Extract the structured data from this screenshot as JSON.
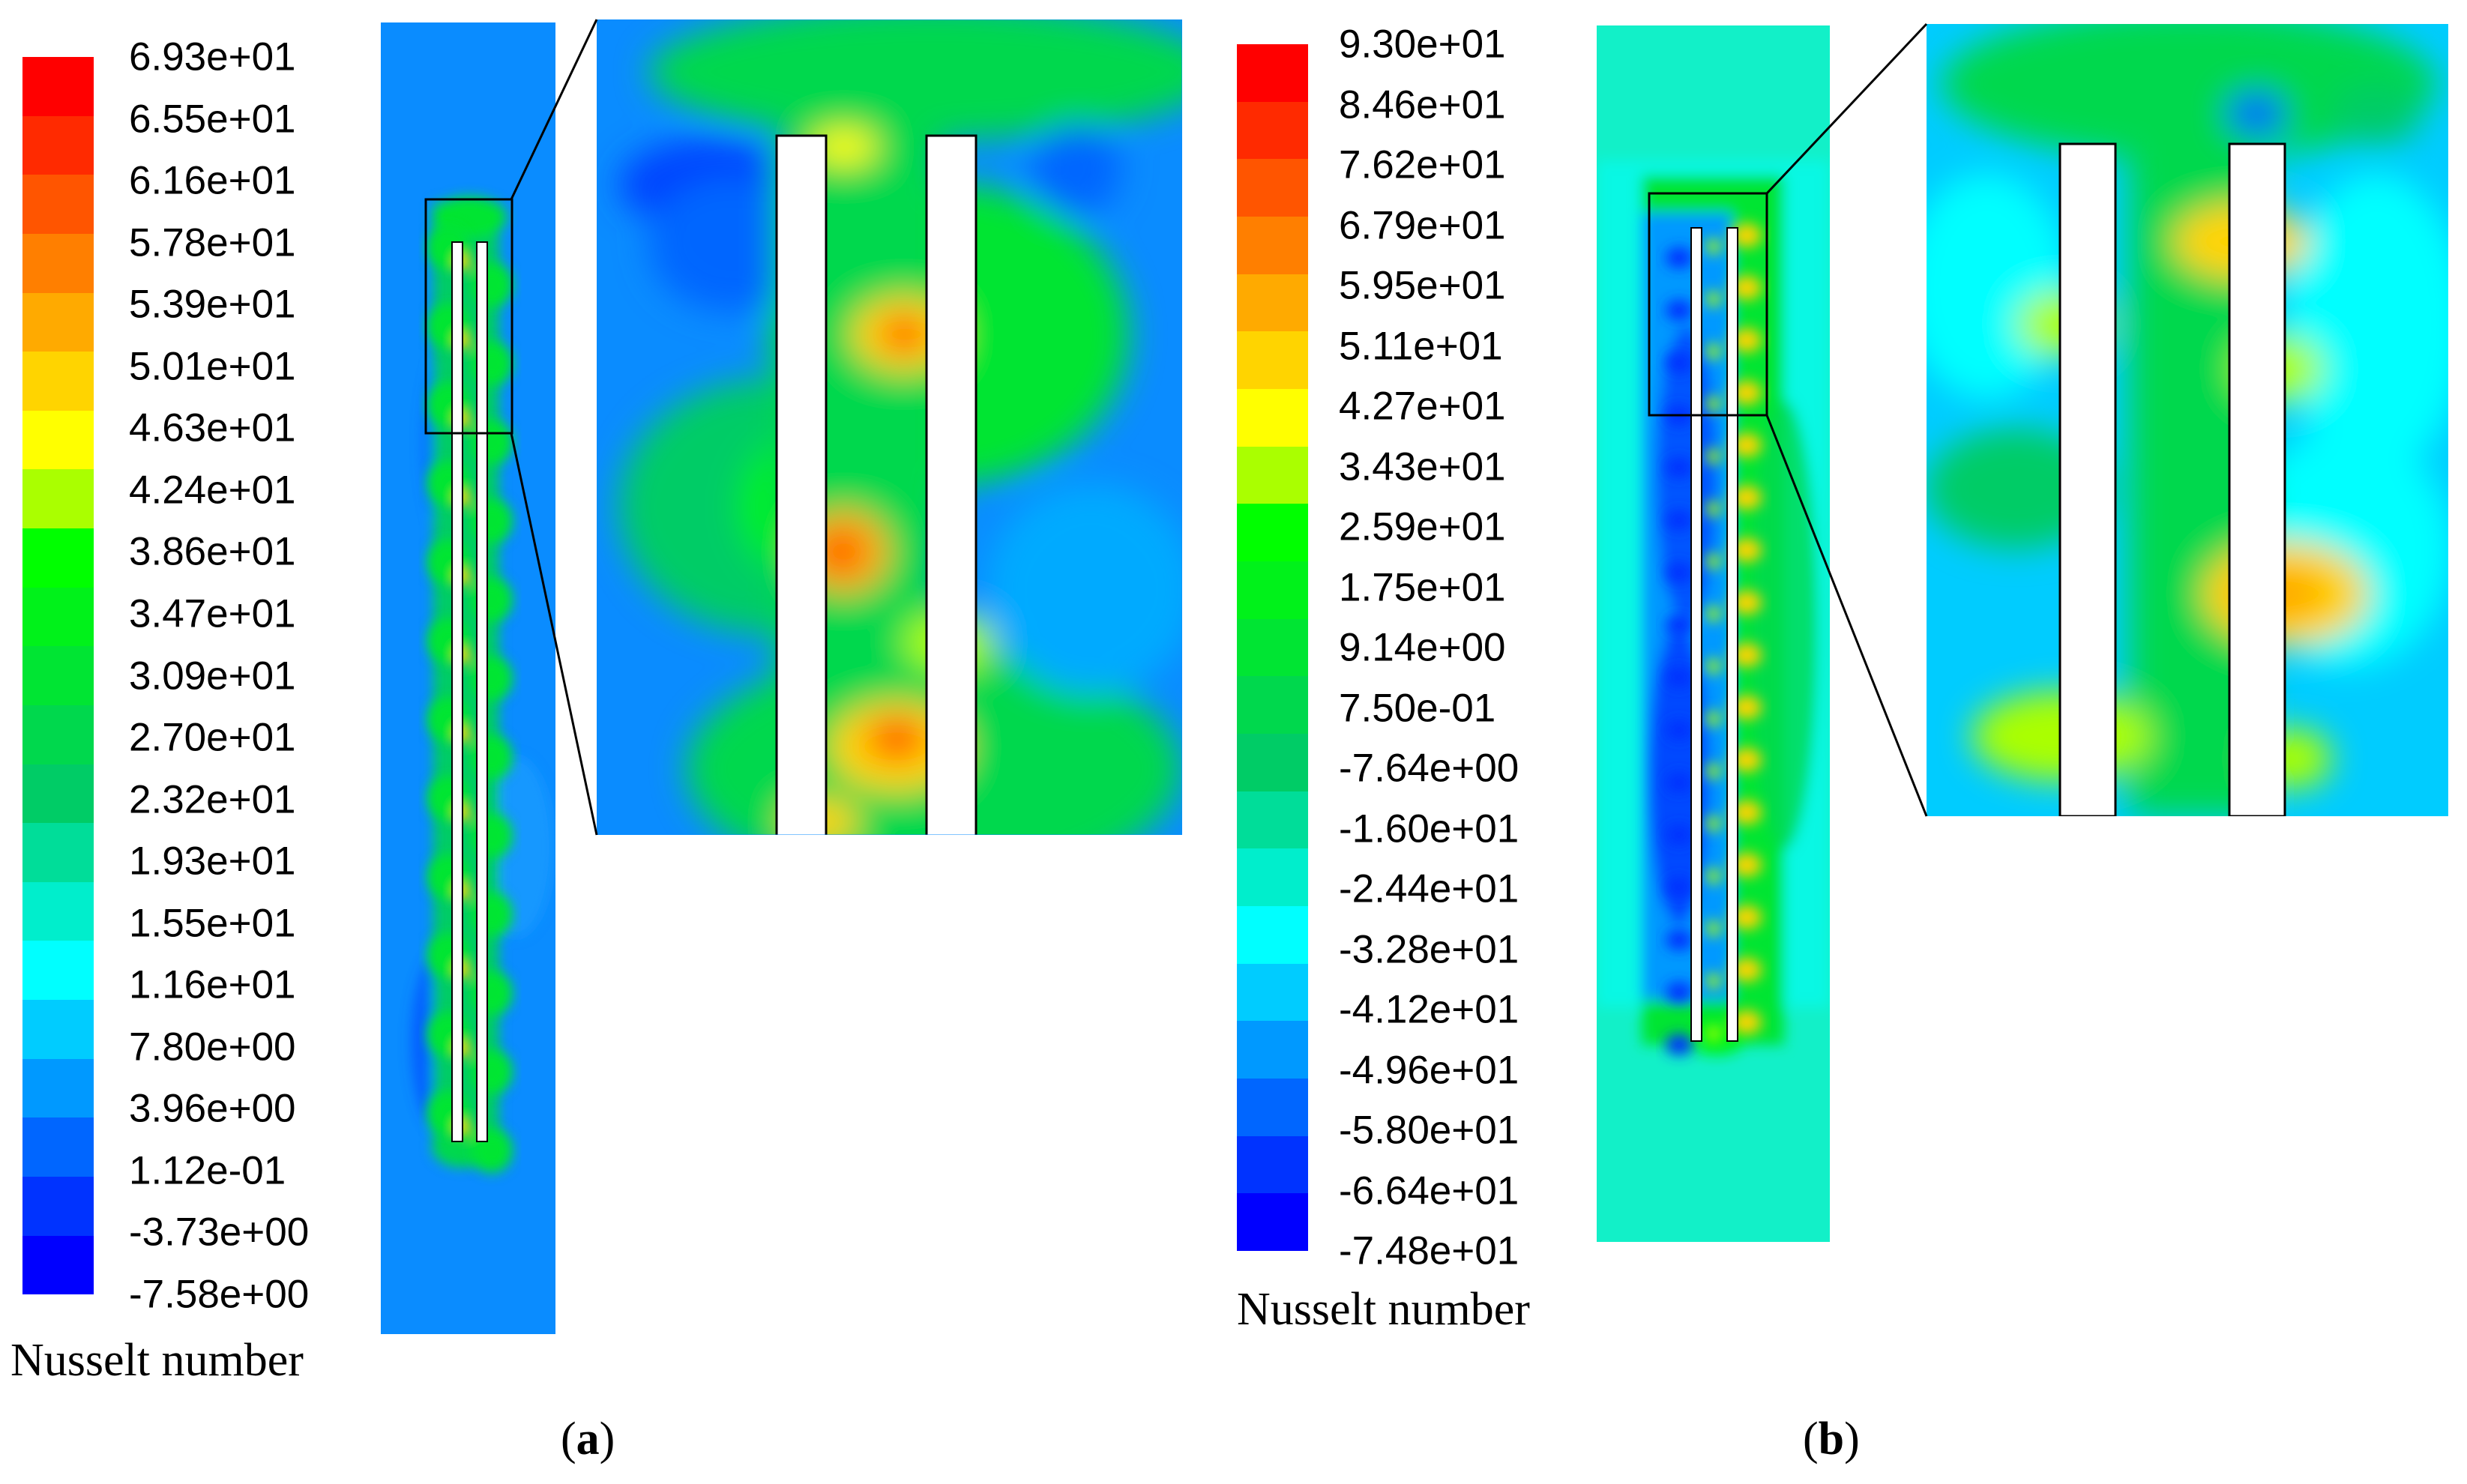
{
  "panels": [
    {
      "id": "a",
      "colorbar_title": "Nusselt number",
      "label": "a",
      "ticks": [
        "6.93e+01",
        "6.55e+01",
        "6.16e+01",
        "5.78e+01",
        "5.39e+01",
        "5.01e+01",
        "4.63e+01",
        "4.24e+01",
        "3.86e+01",
        "3.47e+01",
        "3.09e+01",
        "2.70e+01",
        "2.32e+01",
        "1.93e+01",
        "1.55e+01",
        "1.16e+01",
        "7.80e+00",
        "3.96e+00",
        "1.12e-01",
        "-3.73e+00",
        "-7.58e+00"
      ]
    },
    {
      "id": "b",
      "colorbar_title": "Nusselt number",
      "label": "b",
      "ticks": [
        "9.30e+01",
        "8.46e+01",
        "7.62e+01",
        "6.79e+01",
        "5.95e+01",
        "5.11e+01",
        "4.27e+01",
        "3.43e+01",
        "2.59e+01",
        "1.75e+01",
        "9.14e+00",
        "7.50e-01",
        "-7.64e+00",
        "-1.60e+01",
        "-2.44e+01",
        "-3.28e+01",
        "-4.12e+01",
        "-4.96e+01",
        "-5.80e+01",
        "-6.64e+01",
        "-7.48e+01"
      ]
    }
  ],
  "colormap": [
    "#ff0000",
    "#ff2a00",
    "#ff5500",
    "#ff7f00",
    "#ffaa00",
    "#ffd400",
    "#ffff00",
    "#aaff00",
    "#00ff00",
    "#00f21a",
    "#00e533",
    "#00d84d",
    "#00cc66",
    "#00dd99",
    "#00eecc",
    "#00ffff",
    "#00ccff",
    "#0099ff",
    "#0066ff",
    "#0033ff",
    "#0000ff"
  ],
  "field_colors": {
    "panel_a_background": "#0a8cff",
    "panel_b_background": "#12f0c8"
  }
}
